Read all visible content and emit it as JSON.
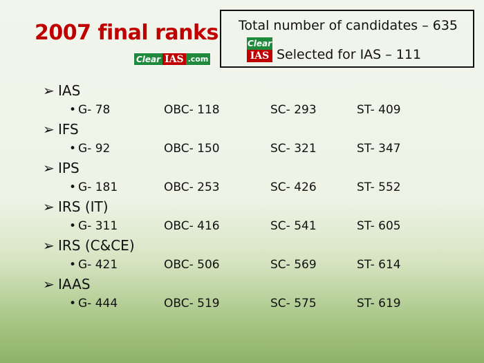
{
  "title": "2007 final ranks",
  "logo": {
    "clear": "Clear",
    "ias": "IAS",
    "com": ".com"
  },
  "info_box": {
    "total": "Total number of candidates – 635",
    "selected": "Selected for IAS – 111",
    "logo_clear": "Clear",
    "logo_ias": "IAS"
  },
  "sections": [
    {
      "name": "IAS",
      "g": "G- 78",
      "obc": "OBC- 118",
      "sc": "SC- 293",
      "st": "ST- 409"
    },
    {
      "name": "IFS",
      "g": "G- 92",
      "obc": "OBC- 150",
      "sc": "SC- 321",
      "st": "ST- 347"
    },
    {
      "name": "IPS",
      "g": "G- 181",
      "obc": "OBC- 253",
      "sc": "SC- 426",
      "st": "ST- 552"
    },
    {
      "name": "IRS (IT)",
      "g": "G- 311",
      "obc": "OBC- 416",
      "sc": "SC- 541",
      "st": "ST- 605"
    },
    {
      "name": "IRS (C&CE)",
      "g": "G- 421",
      "obc": "OBC- 506",
      "sc": "SC- 569",
      "st": "ST- 614"
    },
    {
      "name": "IAAS",
      "g": "G- 444",
      "obc": "OBC- 519",
      "sc": "SC- 575",
      "st": "ST- 619"
    }
  ],
  "colors": {
    "title": "#c00000",
    "logo_green": "#1f8a3c",
    "logo_red": "#c00000"
  }
}
